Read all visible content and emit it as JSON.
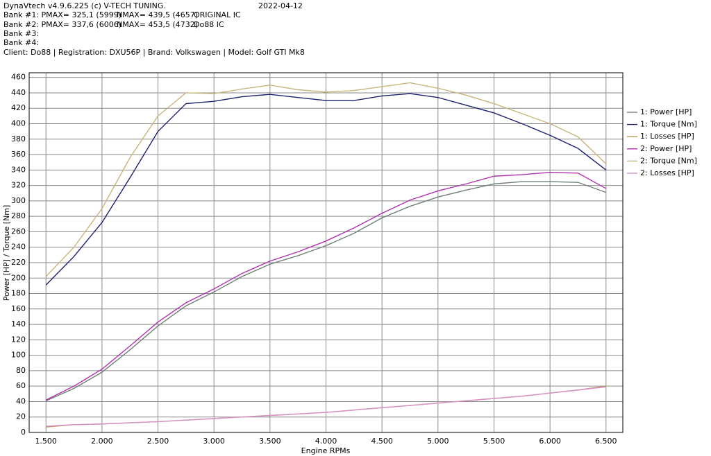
{
  "header": {
    "title": "DynaVtech v4.9.6.225 (c) V-TECH TUNING.",
    "date": "2022-04-12",
    "banks": [
      [
        "Bank #1: PMAX= 325,1 (5999)",
        "NMAX= 439,5 (4657)",
        "ORIGINAL IC"
      ],
      [
        "Bank #2: PMAX= 337,6 (6006)",
        "NMAX= 453,5 (4732)",
        "Do88 IC"
      ],
      [
        "Bank #3:"
      ],
      [
        "Bank #4:"
      ]
    ],
    "client": "Client: Do88 | Registration: DXU56P | Brand: Volkswagen | Model: Golf GTI Mk8"
  },
  "chart_data": {
    "type": "line",
    "x_label": "Engine RPMs",
    "y_label": "Power [HP] / Torque [Nm]",
    "x": [
      1500,
      1750,
      2000,
      2250,
      2500,
      2750,
      3000,
      3250,
      3500,
      3750,
      4000,
      4250,
      4500,
      4750,
      5000,
      5250,
      5500,
      5750,
      6000,
      6250,
      6500
    ],
    "xlim": [
      1350,
      6650
    ],
    "xticks": [
      {
        "value": 1500,
        "label": "1.500"
      },
      {
        "value": 2000,
        "label": "2.000"
      },
      {
        "value": 2500,
        "label": "2.500"
      },
      {
        "value": 3000,
        "label": "3.000"
      },
      {
        "value": 3500,
        "label": "3.500"
      },
      {
        "value": 4000,
        "label": "4.000"
      },
      {
        "value": 4500,
        "label": "4.500"
      },
      {
        "value": 5000,
        "label": "5.000"
      },
      {
        "value": 5500,
        "label": "5.500"
      },
      {
        "value": 6000,
        "label": "6.000"
      },
      {
        "value": 6500,
        "label": "6.500"
      }
    ],
    "ylim": [
      0,
      466
    ],
    "yticks": [
      0,
      20,
      40,
      60,
      80,
      100,
      120,
      140,
      160,
      180,
      200,
      220,
      240,
      260,
      280,
      300,
      320,
      340,
      360,
      380,
      400,
      420,
      440,
      460
    ],
    "grid": true,
    "series": [
      {
        "name": "1: Power [HP]",
        "color": "#6e7f74",
        "values": [
          41,
          57,
          78,
          107,
          138,
          164,
          182,
          202,
          218,
          229,
          242,
          258,
          278,
          293,
          305,
          314,
          322,
          325,
          325,
          324,
          311
        ]
      },
      {
        "name": "1: Torque [Nm]",
        "color": "#1b1f6e",
        "values": [
          191,
          228,
          272,
          330,
          390,
          426,
          429,
          435,
          438,
          434,
          430,
          430,
          436,
          439,
          434,
          424,
          414,
          400,
          385,
          368,
          340
        ]
      },
      {
        "name": "1: Losses [HP]",
        "color": "#b89a50",
        "values": [
          7,
          10,
          11,
          12.5,
          14,
          16,
          18,
          20,
          22,
          24,
          26,
          29,
          32,
          35,
          38,
          41,
          44,
          47,
          51,
          55,
          60
        ]
      },
      {
        "name": "2: Power [HP]",
        "color": "#b030b0",
        "values": [
          42,
          60,
          82,
          112,
          143,
          168,
          186,
          206,
          222,
          234,
          248,
          265,
          284,
          301,
          313,
          322,
          332,
          334,
          337,
          336,
          316
        ]
      },
      {
        "name": "2: Torque [Nm]",
        "color": "#c8b47c",
        "values": [
          202,
          240,
          290,
          356,
          410,
          440,
          439,
          445,
          450,
          444,
          441,
          443,
          448,
          453,
          446,
          437,
          426,
          413,
          400,
          383,
          348
        ]
      },
      {
        "name": "2: Losses [HP]",
        "color": "#d890c8",
        "values": [
          8,
          10,
          11,
          12.5,
          14,
          16,
          18,
          20,
          22,
          24,
          26,
          29,
          32,
          35,
          38,
          41,
          44,
          47,
          51,
          55,
          59
        ]
      }
    ]
  }
}
